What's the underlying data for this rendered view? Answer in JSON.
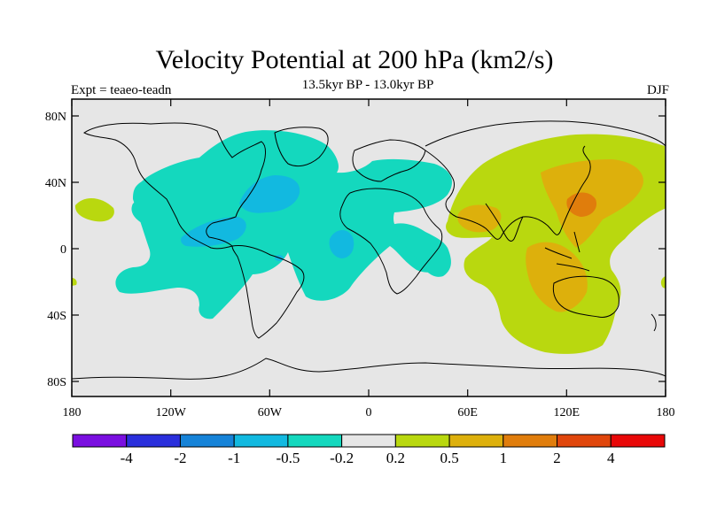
{
  "title": "Velocity Potential at 200 hPa (km2/s)",
  "subtitle": "13.5kyr BP - 13.0kyr BP",
  "left_label": "Expt = teaeo-teadn",
  "right_label": "DJF",
  "y_ticks": [
    "80N",
    "40N",
    "0",
    "40S",
    "80S"
  ],
  "x_ticks": [
    "180",
    "120W",
    "60W",
    "0",
    "60E",
    "120E",
    "180"
  ],
  "colorbar": {
    "labels": [
      "-4",
      "-2",
      "-1",
      "-0.5",
      "-0.2",
      "0.2",
      "0.5",
      "1",
      "2",
      "4"
    ],
    "colors": [
      "#7a0fe0",
      "#2a2fdc",
      "#1683d8",
      "#12b9e0",
      "#14d8be",
      "#e6e6e6",
      "#b9d80f",
      "#ddb00c",
      "#e07d0c",
      "#e0460c",
      "#e80808"
    ]
  },
  "colors": {
    "neutral": "#e6e6e6",
    "neg_light": "#14d8be",
    "neg_mid": "#12b9e0",
    "neg_strong": "#1683d8",
    "pos_light": "#b9d80f",
    "pos_mid": "#ddb00c",
    "pos_strong": "#e07d0c"
  }
}
